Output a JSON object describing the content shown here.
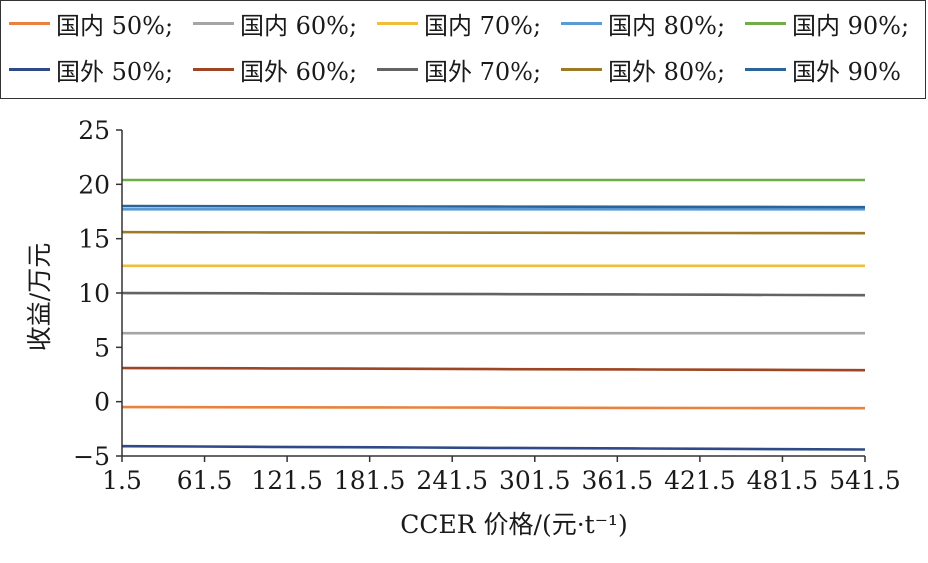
{
  "chart_data": {
    "type": "line",
    "xlabel": "CCER 价格/(元·t⁻¹)",
    "ylabel": "收益/万元",
    "x_ticks": [
      "1.5",
      "61.5",
      "121.5",
      "181.5",
      "241.5",
      "301.5",
      "361.5",
      "421.5",
      "481.5",
      "541.5"
    ],
    "xlim": [
      1.5,
      541.5
    ],
    "y_ticks": [
      "25",
      "20",
      "15",
      "10",
      "5",
      "0",
      "−5"
    ],
    "ylim": [
      -5,
      25
    ],
    "legend_position": "top",
    "series": [
      {
        "name": "国内 50%;",
        "color": "#E8823E",
        "start": -0.5,
        "end": -0.6
      },
      {
        "name": "国内 60%;",
        "color": "#A5A5A5",
        "start": 6.3,
        "end": 6.3
      },
      {
        "name": "国内 70%;",
        "color": "#F2BE3A",
        "start": 12.5,
        "end": 12.5
      },
      {
        "name": "国内 80%;",
        "color": "#5B9BD5",
        "start": 17.7,
        "end": 17.7
      },
      {
        "name": "国内 90%;",
        "color": "#70AD47",
        "start": 20.4,
        "end": 20.4
      },
      {
        "name": "国外 50%;",
        "color": "#2E4A87",
        "start": -4.1,
        "end": -4.4
      },
      {
        "name": "国外 60%;",
        "color": "#9E4623",
        "start": 3.1,
        "end": 2.9
      },
      {
        "name": "国外 70%;",
        "color": "#636363",
        "start": 10.0,
        "end": 9.8
      },
      {
        "name": "国外 80%;",
        "color": "#9E7A28",
        "start": 15.6,
        "end": 15.5
      },
      {
        "name": "国外 90%",
        "color": "#2A6499",
        "start": 18.0,
        "end": 17.9
      }
    ]
  }
}
